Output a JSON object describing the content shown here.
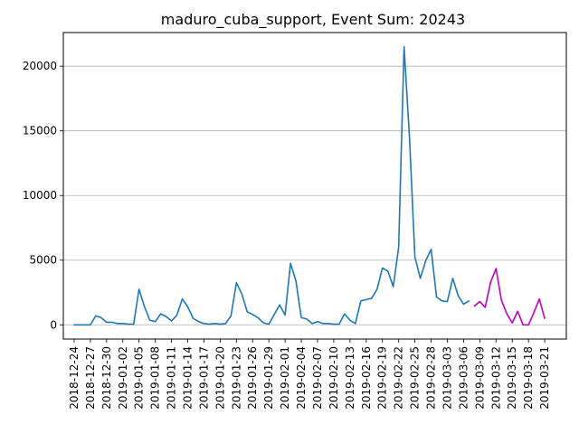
{
  "chart_data": {
    "type": "line",
    "title": "maduro_cuba_support, Event Sum: 20243",
    "xlabel": "",
    "ylabel": "",
    "x_start": "2018-12-24",
    "x_tick_labels": [
      "2018-12-24",
      "2018-12-27",
      "2018-12-30",
      "2019-01-02",
      "2019-01-05",
      "2019-01-08",
      "2019-01-11",
      "2019-01-14",
      "2019-01-17",
      "2019-01-20",
      "2019-01-23",
      "2019-01-26",
      "2019-01-29",
      "2019-02-01",
      "2019-02-04",
      "2019-02-07",
      "2019-02-10",
      "2019-02-13",
      "2019-02-16",
      "2019-02-19",
      "2019-02-22",
      "2019-02-25",
      "2019-02-28",
      "2019-03-03",
      "2019-03-06",
      "2019-03-09",
      "2019-03-12",
      "2019-03-15",
      "2019-03-18",
      "2019-03-21"
    ],
    "y_ticks": [
      0,
      5000,
      10000,
      15000,
      20000
    ],
    "y_tick_labels": [
      "0",
      "5000",
      "10000",
      "15000",
      "20000"
    ],
    "xlim": [
      "2018-12-22",
      "2019-03-25"
    ],
    "ylim": [
      -1100,
      22600
    ],
    "grid": "horizontal",
    "series": [
      {
        "color": "#1f77b4",
        "x": [
          "2018-12-24",
          "2018-12-25",
          "2018-12-26",
          "2018-12-27",
          "2018-12-28",
          "2018-12-29",
          "2018-12-30",
          "2018-12-31",
          "2019-01-01",
          "2019-01-02",
          "2019-01-03",
          "2019-01-04",
          "2019-01-05",
          "2019-01-06",
          "2019-01-07",
          "2019-01-08",
          "2019-01-09",
          "2019-01-10",
          "2019-01-11",
          "2019-01-12",
          "2019-01-13",
          "2019-01-14",
          "2019-01-15",
          "2019-01-16",
          "2019-01-17",
          "2019-01-18",
          "2019-01-19",
          "2019-01-20",
          "2019-01-21",
          "2019-01-22",
          "2019-01-23",
          "2019-01-24",
          "2019-01-25",
          "2019-01-26",
          "2019-01-27",
          "2019-01-28",
          "2019-01-29",
          "2019-01-30",
          "2019-01-31",
          "2019-02-01",
          "2019-02-02",
          "2019-02-03",
          "2019-02-04",
          "2019-02-05",
          "2019-02-06",
          "2019-02-07",
          "2019-02-08",
          "2019-02-09",
          "2019-02-10",
          "2019-02-11",
          "2019-02-12",
          "2019-02-13",
          "2019-02-14",
          "2019-02-15",
          "2019-02-16",
          "2019-02-17",
          "2019-02-18",
          "2019-02-19",
          "2019-02-20",
          "2019-02-21",
          "2019-02-22",
          "2019-02-23",
          "2019-02-24",
          "2019-02-25",
          "2019-02-26",
          "2019-02-27",
          "2019-02-28",
          "2019-03-01",
          "2019-03-02",
          "2019-03-03",
          "2019-03-04",
          "2019-03-05",
          "2019-03-06",
          "2019-03-07"
        ],
        "y": [
          0,
          0,
          0,
          0,
          700,
          550,
          200,
          200,
          100,
          100,
          50,
          50,
          2750,
          1400,
          350,
          250,
          850,
          650,
          300,
          750,
          2000,
          1400,
          500,
          250,
          100,
          50,
          100,
          50,
          100,
          700,
          3250,
          2400,
          1000,
          800,
          550,
          150,
          50,
          800,
          1550,
          750,
          4750,
          3400,
          550,
          450,
          100,
          250,
          100,
          100,
          50,
          50,
          850,
          350,
          100,
          1850,
          1950,
          2050,
          2750,
          4400,
          4150,
          2950,
          6000,
          21500,
          14500,
          5250,
          3600,
          4950,
          5850,
          2150,
          1850,
          1800,
          3600,
          2250,
          1600,
          1850
        ]
      },
      {
        "color": "#bf00bf",
        "x": [
          "2019-03-08",
          "2019-03-09",
          "2019-03-10",
          "2019-03-11",
          "2019-03-12",
          "2019-03-13",
          "2019-03-14",
          "2019-03-15",
          "2019-03-16",
          "2019-03-17",
          "2019-03-18",
          "2019-03-19",
          "2019-03-20",
          "2019-03-21"
        ],
        "y": [
          1450,
          1800,
          1350,
          3300,
          4350,
          1900,
          850,
          150,
          1050,
          0,
          0,
          950,
          2000,
          500
        ]
      }
    ]
  }
}
